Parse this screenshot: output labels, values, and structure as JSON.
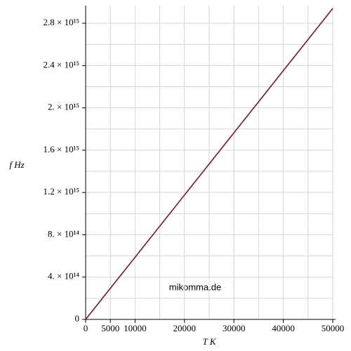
{
  "chart_data": {
    "type": "line",
    "x_label": "T K",
    "y_label": "f Hz",
    "annotation": "mikomma.de",
    "x": [
      0,
      50000
    ],
    "series": [
      {
        "name": "f",
        "color": "#7a1628",
        "values": [
          0,
          2940000000000000.0
        ]
      }
    ],
    "xlim": [
      0,
      50000
    ],
    "ylim": [
      0,
      2940000000000000.0
    ],
    "xticks": [
      0,
      5000,
      10000,
      20000,
      30000,
      40000,
      50000
    ],
    "yticks": [
      0,
      {
        "value": 400000000000000.0,
        "label": "4. × 10¹⁴"
      },
      {
        "value": 800000000000000.0,
        "label": "8. × 10¹⁴"
      },
      {
        "value": 1200000000000000.0,
        "label": "1.2 × 10¹⁵"
      },
      {
        "value": 1600000000000000.0,
        "label": "1.6 × 10¹⁵"
      },
      {
        "value": 2000000000000000.0,
        "label": "2. × 10¹⁵"
      },
      {
        "value": 2400000000000000.0,
        "label": "2.4 × 10¹⁵"
      },
      {
        "value": 2800000000000000.0,
        "label": "2.8 × 10¹⁵"
      }
    ],
    "xgrid": [
      5000,
      10000,
      15000,
      20000,
      25000,
      30000,
      35000,
      40000,
      45000,
      50000
    ],
    "ygrid": [
      200000000000000.0,
      400000000000000.0,
      600000000000000.0,
      800000000000000.0,
      1000000000000000.0,
      1200000000000000.0,
      1400000000000000.0,
      1600000000000000.0,
      1800000000000000.0,
      2000000000000000.0,
      2200000000000000.0,
      2400000000000000.0,
      2600000000000000.0,
      2800000000000000.0
    ],
    "grid": true
  }
}
